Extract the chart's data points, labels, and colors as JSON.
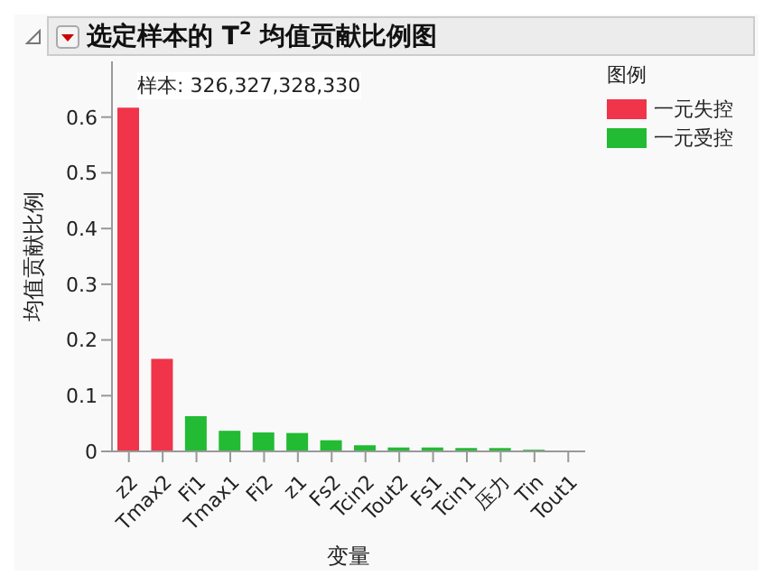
{
  "chart_data": {
    "type": "bar",
    "title": "选定样本的 T$^{2}$ 均值贡献比例图",
    "xlabel": "变量",
    "ylabel": "均值贡献比例",
    "legend_title": "图例",
    "annotations": [
      "样本: 326,327,328,330"
    ],
    "categories": [
      "z2",
      "Tmax2",
      "Fi1",
      "Tmax1",
      "Fi2",
      "z1",
      "Fs2",
      "Tcin2",
      "Tout2",
      "Fs1",
      "Tcin1",
      "压力",
      "Tin",
      "Tout1"
    ],
    "stacked": true,
    "series": [
      {
        "name": "一元失控",
        "color": "#f0344a",
        "values": [
          0.617,
          0.166,
          null,
          null,
          null,
          null,
          null,
          null,
          null,
          null,
          null,
          null,
          null,
          null
        ]
      },
      {
        "name": "一元受控",
        "color": "#22bb33",
        "values": [
          null,
          null,
          0.063,
          0.037,
          0.034,
          0.033,
          0.02,
          0.011,
          0.007,
          0.007,
          0.006,
          0.006,
          0.003,
          0
        ]
      }
    ],
    "ylim": [
      0,
      0.7
    ],
    "yticks": [
      0,
      0.1,
      0.2,
      0.3,
      0.4,
      0.5,
      0.6
    ],
    "legend": "right"
  }
}
